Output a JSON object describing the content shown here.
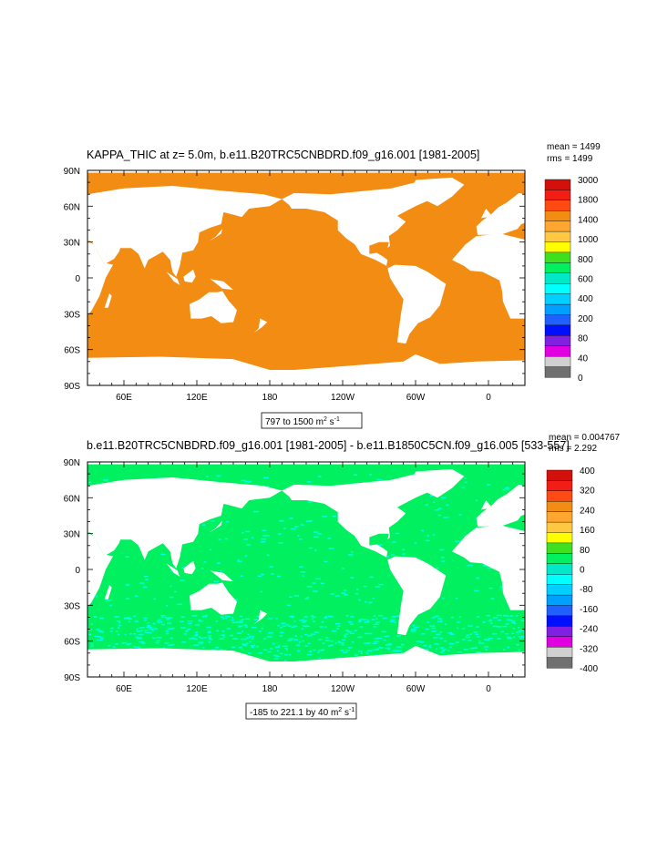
{
  "colors": {
    "land": "#ffffff",
    "ocean_top": "#f28c12",
    "ocean_bottom": "#00f060",
    "ocean_bottom_noise": "#00ffe0",
    "frame": "#000000"
  },
  "longitude_tick_labels": [
    "60E",
    "120E",
    "180",
    "120W",
    "60W",
    "0"
  ],
  "latitude_tick_labels": [
    "90N",
    "60N",
    "30N",
    "0",
    "30S",
    "60S",
    "90S"
  ],
  "chart_data": [
    {
      "type": "heatmap",
      "title": "KAPPA_THIC at z=   5.0m, b.e11.B20TRC5CNBDRD.f09_g16.001 [1981-2005]",
      "stats": {
        "mean": "mean = 1499",
        "rms": "rms = 1499"
      },
      "range_label": {
        "text": "797 to 1500 m",
        "sup1": "2",
        "mid": " s",
        "sup2": "-1"
      },
      "colorbar": {
        "labels": [
          "3000",
          "1800",
          "1400",
          "1000",
          "800",
          "600",
          "400",
          "200",
          "80",
          "40",
          "0"
        ],
        "colors": [
          "#d4100c",
          "#f21d14",
          "#ff4a14",
          "#f28c12",
          "#ffa631",
          "#ffc843",
          "#ffff00",
          "#40e020",
          "#00f060",
          "#00e8c8",
          "#00ffff",
          "#00cfff",
          "#00a0ff",
          "#2060ff",
          "#0010ff",
          "#8020e0",
          "#e000e0",
          "#d0d0d0",
          "#707070"
        ]
      },
      "xlim": [
        "30E",
        "30E"
      ],
      "ylim": [
        -90,
        90
      ],
      "field_value_range": [
        797,
        1500
      ]
    },
    {
      "type": "heatmap",
      "title": "b.e11.B20TRC5CNBDRD.f09_g16.001 [1981-2005] - b.e11.B1850C5CN.f09_g16.005 [533-557]",
      "stats": {
        "mean": "mean = 0.004767",
        "rms": "rms = 2.292"
      },
      "range_label": {
        "text": "-185 to 221.1 by 40 m",
        "sup1": "2",
        "mid": " s",
        "sup2": "-1"
      },
      "colorbar": {
        "labels": [
          "400",
          "320",
          "240",
          "160",
          "80",
          "0",
          "-80",
          "-160",
          "-240",
          "-320",
          "-400"
        ],
        "colors": [
          "#d4100c",
          "#f21d14",
          "#ff4a14",
          "#f28c12",
          "#ffa631",
          "#ffc843",
          "#ffff00",
          "#40e020",
          "#00f060",
          "#00e8c8",
          "#00ffff",
          "#00cfff",
          "#00a0ff",
          "#2060ff",
          "#0010ff",
          "#8020e0",
          "#e000e0",
          "#d0d0d0",
          "#707070"
        ]
      },
      "xlim": [
        "30E",
        "30E"
      ],
      "ylim": [
        -90,
        90
      ],
      "field_value_range": [
        -185,
        221.1
      ]
    }
  ]
}
